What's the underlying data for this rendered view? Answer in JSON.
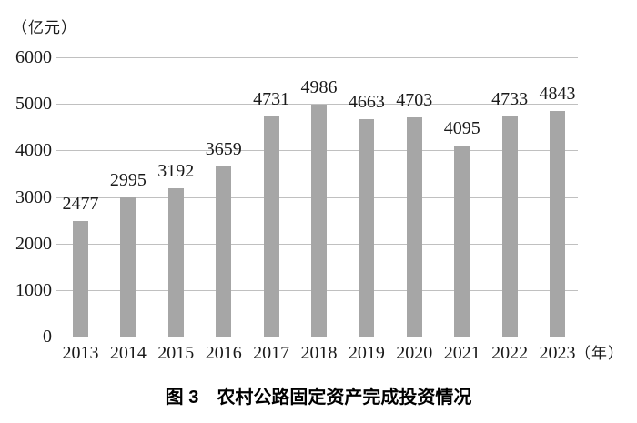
{
  "chart_data": {
    "type": "bar",
    "title": "图 3　农村公路固定资产完成投资情况",
    "ylabel": "（亿元）",
    "xlabel": "（年）",
    "categories": [
      "2013",
      "2014",
      "2015",
      "2016",
      "2017",
      "2018",
      "2019",
      "2020",
      "2021",
      "2022",
      "2023"
    ],
    "values": [
      2477,
      2995,
      3192,
      3659,
      4731,
      4986,
      4663,
      4703,
      4095,
      4733,
      4843
    ],
    "yticks": [
      0,
      1000,
      2000,
      3000,
      4000,
      5000,
      6000
    ],
    "ylim": [
      0,
      6000
    ],
    "grid": true,
    "legend": "none",
    "bar_color": "#a6a6a6",
    "grid_color": "#c0c0c0",
    "text_color": "#1a1a1a"
  }
}
